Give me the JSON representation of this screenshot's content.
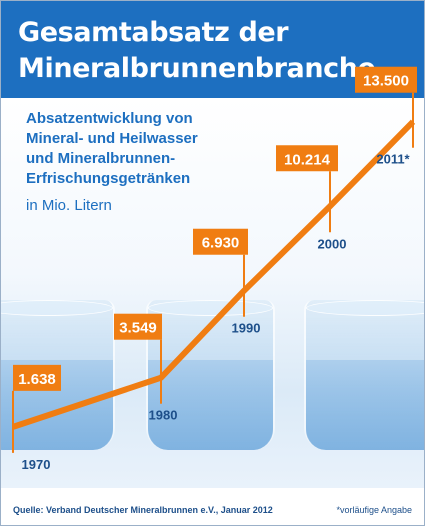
{
  "title": "Gesamtabsatz der Mineralbrunnenbranche",
  "subtitle": "Absatzentwicklung von Mineral- und Heilwasser und Mineralbrunnen-Erfrischungsgetränken",
  "subtitle_lines": [
    "Absatzentwicklung von",
    "Mineral- und Heilwasser",
    "und Mineralbrunnen-",
    "Erfrischungsgetränken"
  ],
  "unit": "in Mio. Litern",
  "source": "Quelle: Verband Deutscher Mineralbrunnen e.V., Januar 2012",
  "footnote": "*vorläufige Angabe",
  "colors": {
    "banner": "#1d6fc0",
    "accent": "#f07d12",
    "text": "#1d6fc0",
    "year_label": "#1d4f8a"
  },
  "chart_data": {
    "type": "line",
    "title": "Gesamtabsatz der Mineralbrunnenbranche",
    "ylabel": "in Mio. Litern",
    "xlabel": "",
    "categories": [
      "1970",
      "1980",
      "1990",
      "2000",
      "2011*"
    ],
    "values": [
      1638,
      3549,
      6930,
      10214,
      13500
    ],
    "value_labels": [
      "1.638",
      "3.549",
      "6.930",
      "10.214",
      "13.500"
    ],
    "ylim": [
      0,
      14500
    ],
    "grid": false,
    "legend": "none"
  }
}
